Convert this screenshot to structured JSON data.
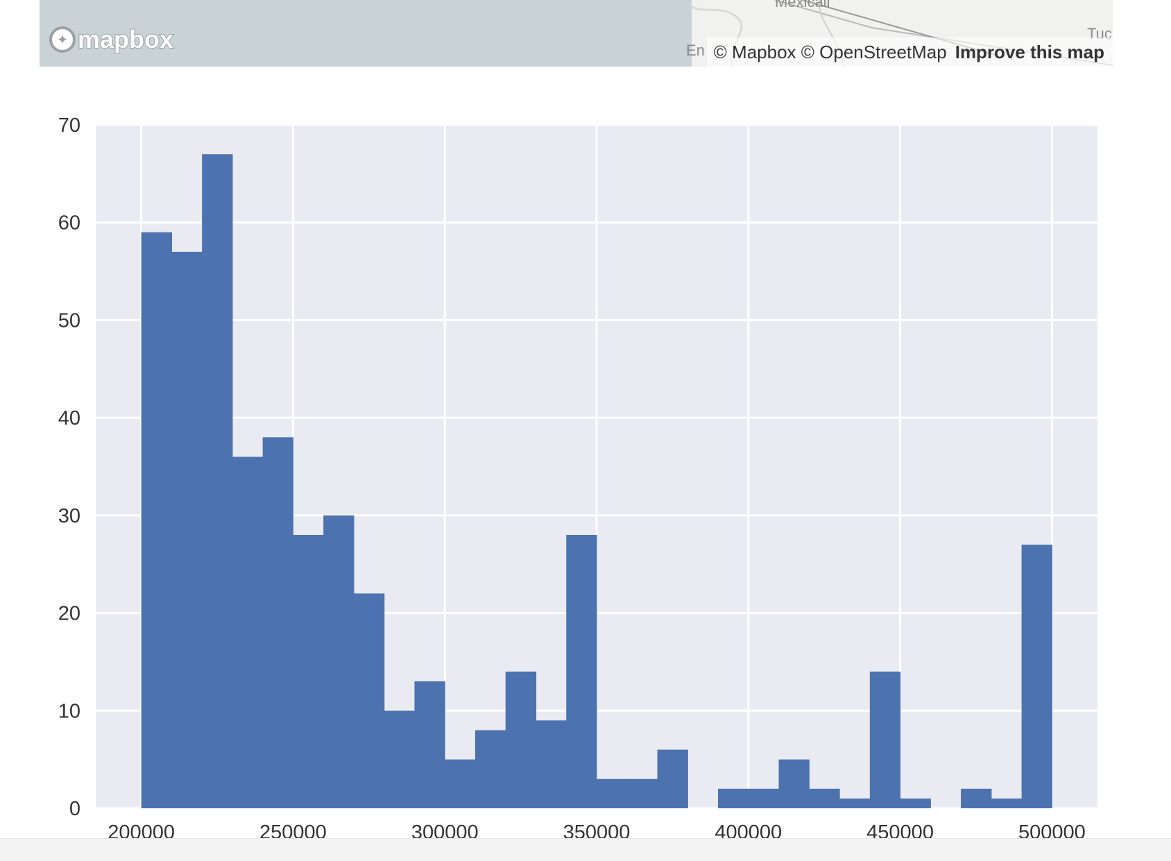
{
  "map": {
    "logo_text": "mapbox",
    "attribution": "© Mapbox © OpenStreetMap",
    "improve_link": "Improve this map",
    "place_labels": [
      "Mexicali",
      "Tuc",
      "En"
    ],
    "water_color": "#c9d2d5",
    "land_color": "#f1f1ef"
  },
  "chart_data": {
    "type": "bar",
    "xlim": [
      185000,
      515000
    ],
    "ylim": [
      0,
      70
    ],
    "xticks": [
      200000,
      250000,
      300000,
      350000,
      400000,
      450000,
      500000
    ],
    "yticks": [
      0,
      10,
      20,
      30,
      40,
      50,
      60,
      70
    ],
    "bin_width": 10000,
    "bins": [
      {
        "start": 200000,
        "count": 59
      },
      {
        "start": 210000,
        "count": 57
      },
      {
        "start": 220000,
        "count": 67
      },
      {
        "start": 230000,
        "count": 36
      },
      {
        "start": 240000,
        "count": 38
      },
      {
        "start": 250000,
        "count": 28
      },
      {
        "start": 260000,
        "count": 30
      },
      {
        "start": 270000,
        "count": 22
      },
      {
        "start": 280000,
        "count": 10
      },
      {
        "start": 290000,
        "count": 13
      },
      {
        "start": 300000,
        "count": 5
      },
      {
        "start": 310000,
        "count": 8
      },
      {
        "start": 320000,
        "count": 14
      },
      {
        "start": 330000,
        "count": 9
      },
      {
        "start": 340000,
        "count": 28
      },
      {
        "start": 350000,
        "count": 3
      },
      {
        "start": 360000,
        "count": 3
      },
      {
        "start": 370000,
        "count": 6
      },
      {
        "start": 380000,
        "count": 0
      },
      {
        "start": 390000,
        "count": 2
      },
      {
        "start": 400000,
        "count": 2
      },
      {
        "start": 410000,
        "count": 5
      },
      {
        "start": 420000,
        "count": 2
      },
      {
        "start": 430000,
        "count": 1
      },
      {
        "start": 440000,
        "count": 14
      },
      {
        "start": 450000,
        "count": 1
      },
      {
        "start": 460000,
        "count": 0
      },
      {
        "start": 470000,
        "count": 2
      },
      {
        "start": 480000,
        "count": 1
      },
      {
        "start": 490000,
        "count": 27
      }
    ],
    "grid": true,
    "background_color": "#eaeaf2",
    "bar_color": "#4c72b0",
    "title": "",
    "xlabel": "",
    "ylabel": ""
  }
}
